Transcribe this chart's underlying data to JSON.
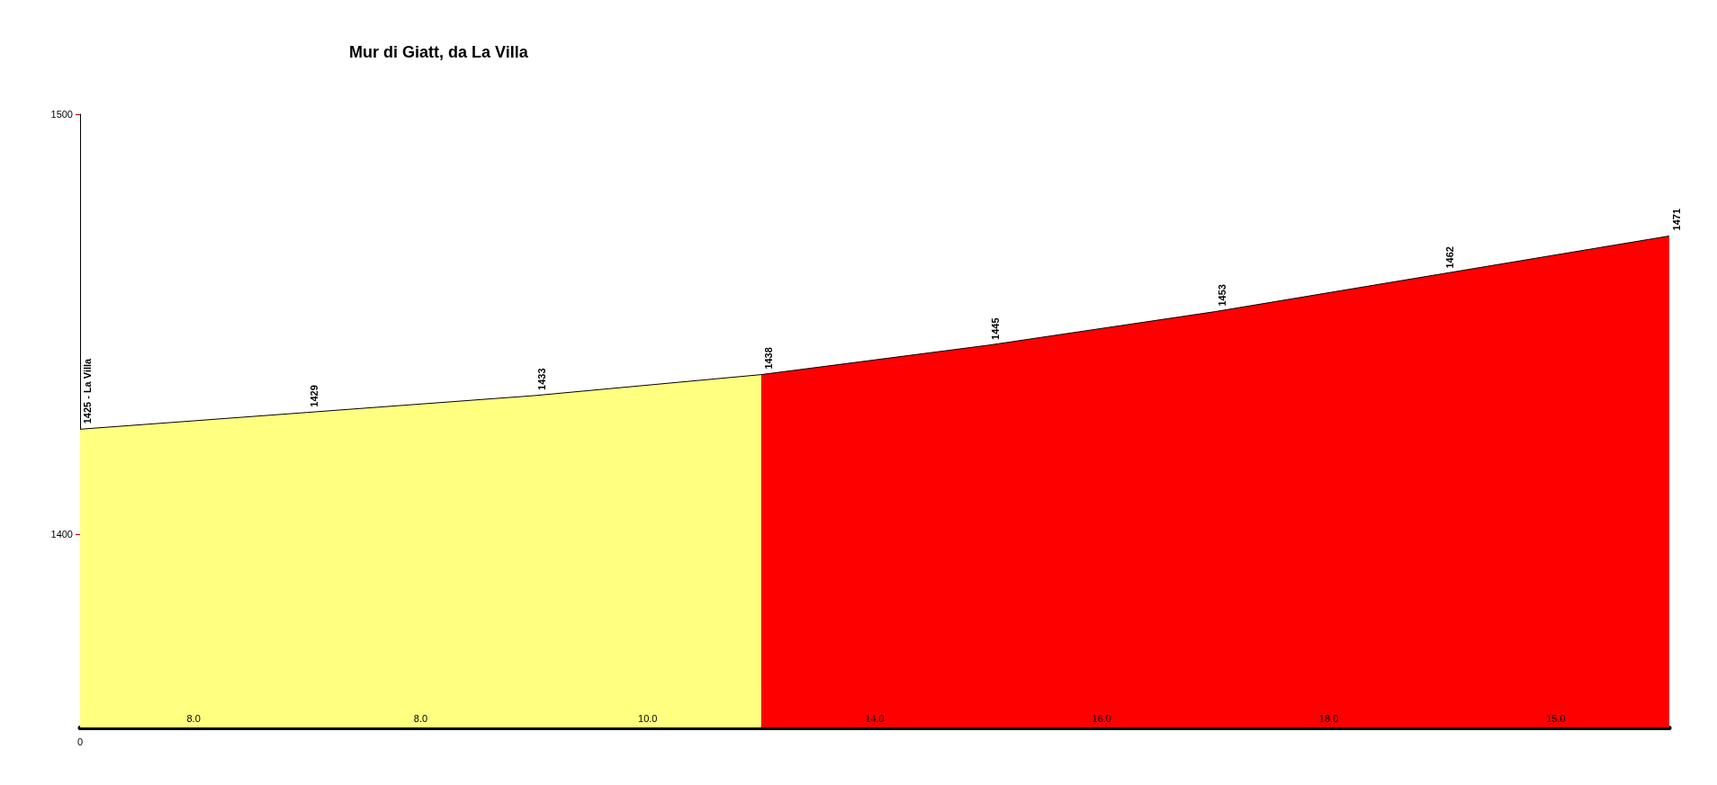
{
  "chart_data": {
    "type": "area",
    "title": "Mur di Giatt, da La Villa",
    "categories": [
      "0",
      null,
      null,
      null,
      null,
      null,
      null,
      null
    ],
    "series": [
      {
        "color": "#ffff80",
        "values": [
          1425,
          1429,
          1433,
          1438,
          null,
          null,
          null,
          null
        ],
        "value_labels": [
          "1425 - La Villa",
          "1429",
          "1433",
          "1438",
          null,
          null,
          null,
          null
        ]
      },
      {
        "color": "#ff0000",
        "values": [
          null,
          null,
          null,
          1438,
          1445,
          1453,
          1462,
          1471
        ],
        "value_labels": [
          null,
          null,
          null,
          null,
          "1445",
          "1453",
          "1462",
          "1471"
        ]
      }
    ],
    "ylim": [
      1354,
      1500
    ],
    "yticks": [
      1400,
      1500
    ],
    "grid": false,
    "marker": "none",
    "annotations": [
      "8.0",
      "8.0",
      "10.0",
      "14.0",
      "16.0",
      "18.0",
      "15.0"
    ]
  }
}
